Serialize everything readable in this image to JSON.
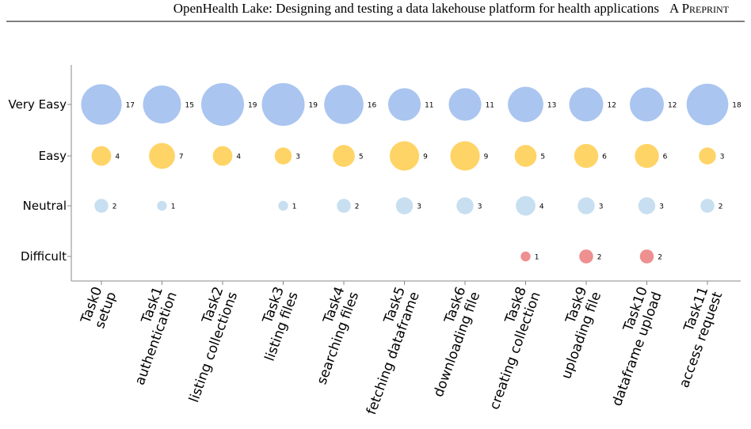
{
  "header": {
    "title": "OpenHealth Lake: Designing and testing a data lakehouse platform for health applications",
    "tag": "A Preprint"
  },
  "chart_data": {
    "type": "bubble",
    "categories": [
      [
        "Task0",
        "setup"
      ],
      [
        "Task1",
        "authentication"
      ],
      [
        "Task2",
        "listing collections"
      ],
      [
        "Task3",
        "listing files"
      ],
      [
        "Task4",
        "searching files"
      ],
      [
        "Task5",
        "fetching dataframe"
      ],
      [
        "Task6",
        "downloading file"
      ],
      [
        "Task8",
        "creating collection"
      ],
      [
        "Task9",
        "uploading file"
      ],
      [
        "Task10",
        "dataframe upload"
      ],
      [
        "Task11",
        "access request"
      ]
    ],
    "series": [
      {
        "name": "Very Easy",
        "color": "#aac5ef",
        "values": [
          17,
          15,
          19,
          19,
          16,
          11,
          11,
          13,
          12,
          12,
          18
        ]
      },
      {
        "name": "Easy",
        "color": "#ffd466",
        "values": [
          4,
          7,
          4,
          3,
          5,
          9,
          9,
          5,
          6,
          6,
          3
        ]
      },
      {
        "name": "Neutral",
        "color": "#c7dff0",
        "values": [
          2,
          1,
          null,
          1,
          2,
          3,
          3,
          4,
          3,
          3,
          2
        ]
      },
      {
        "name": "Difficult",
        "color": "#ee8f90",
        "values": [
          null,
          null,
          null,
          null,
          null,
          null,
          null,
          1,
          2,
          2,
          null
        ]
      }
    ]
  }
}
